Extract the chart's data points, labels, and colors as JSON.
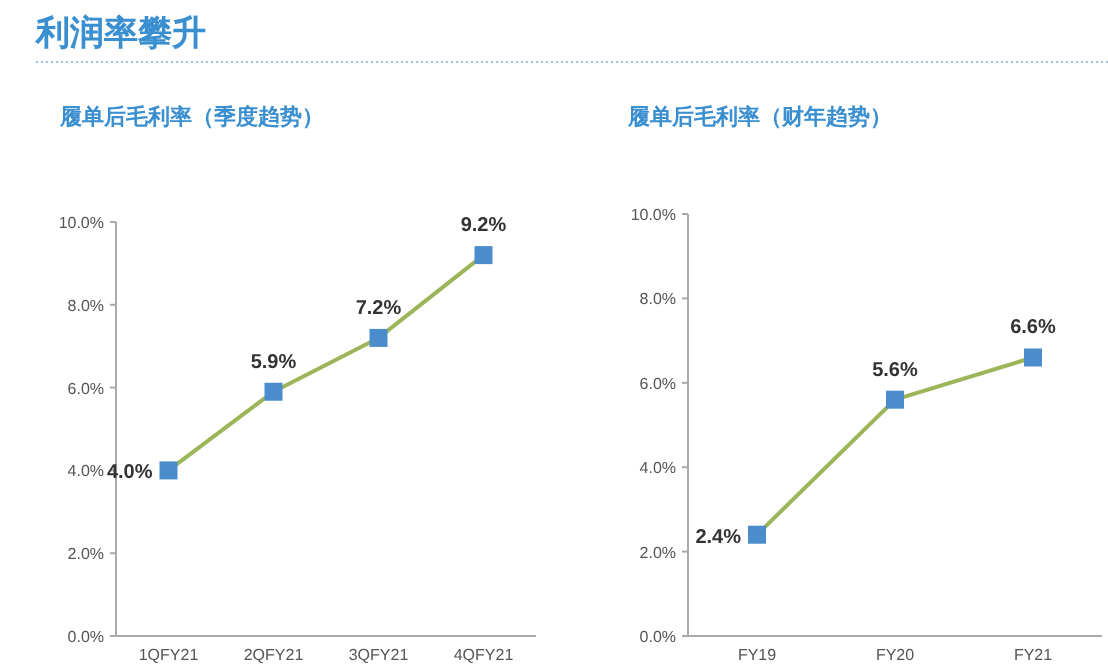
{
  "chart_data": [
    {
      "type": "line",
      "title": "履单后毛利率（季度趋势）",
      "annotations": [
        "利润率攀升"
      ],
      "categories": [
        "1QFY21",
        "2QFY21",
        "3QFY21",
        "4QFY21"
      ],
      "series": [
        {
          "color": "#9bb558",
          "values": [
            4.0,
            5.9,
            7.2,
            9.2
          ],
          "value_labels": [
            "4.0%",
            "5.9%",
            "7.2%",
            "9.2%"
          ]
        }
      ],
      "ylim": [
        0,
        10
      ],
      "yticks": [
        {
          "value": 0,
          "label": "0.0%"
        },
        {
          "value": 2,
          "label": "2.0%"
        },
        {
          "value": 4,
          "label": "4.0%"
        },
        {
          "value": 6,
          "label": "6.0%"
        },
        {
          "value": 8,
          "label": "8.0%"
        },
        {
          "value": 10,
          "label": "10.0%"
        }
      ],
      "marker": "square"
    },
    {
      "type": "line",
      "title": "履单后毛利率（财年趋势）",
      "categories": [
        "FY19",
        "FY20",
        "FY21"
      ],
      "series": [
        {
          "color": "#9bb558",
          "values": [
            2.4,
            5.6,
            6.6
          ],
          "value_labels": [
            "2.4%",
            "5.6%",
            "6.6%"
          ]
        }
      ],
      "ylim": [
        0,
        10
      ],
      "yticks": [
        {
          "value": 0,
          "label": "0.0%"
        },
        {
          "value": 2,
          "label": "2.0%"
        },
        {
          "value": 4,
          "label": "4.0%"
        },
        {
          "value": 6,
          "label": "6.0%"
        },
        {
          "value": 8,
          "label": "8.0%"
        },
        {
          "value": 10,
          "label": "10.0%"
        }
      ],
      "marker": "square"
    }
  ]
}
